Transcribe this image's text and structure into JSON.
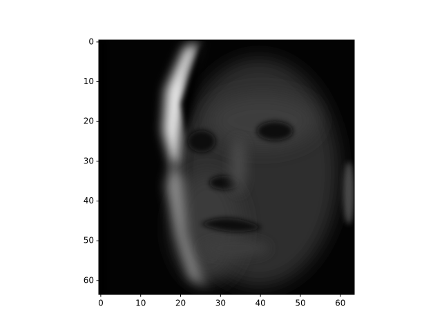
{
  "chart_data": {
    "type": "image",
    "cmap": "gray",
    "xlim": [
      -0.5,
      63.5
    ],
    "ylim": [
      63.5,
      -0.5
    ],
    "xticks": [
      0,
      10,
      20,
      30,
      40,
      50,
      60
    ],
    "yticks": [
      0,
      10,
      20,
      30,
      40,
      50,
      60
    ]
  }
}
